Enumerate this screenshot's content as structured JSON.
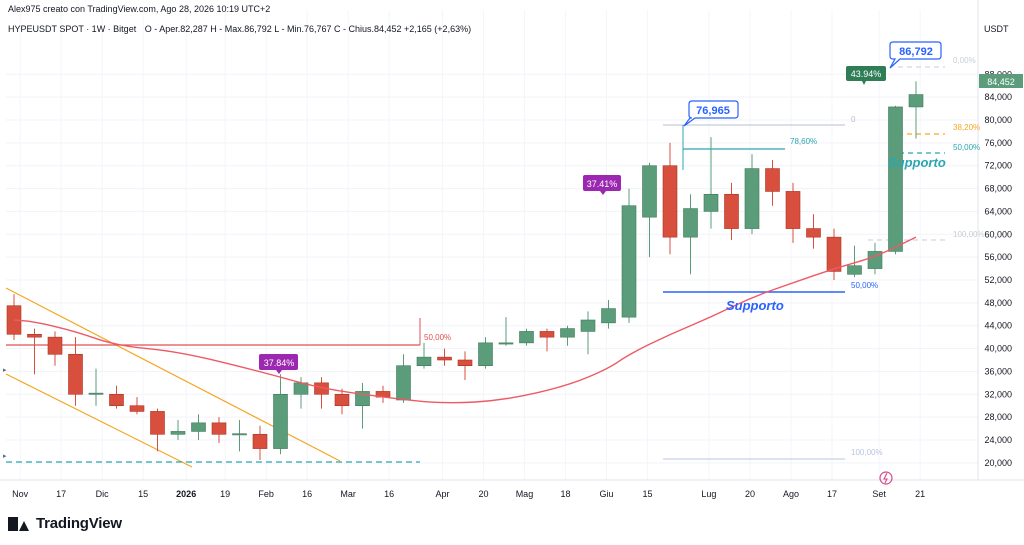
{
  "header": {
    "author_line": "Alex975 creato con TradingView.com, Ago 28, 2026 10:19 UTC+2",
    "symbol_line": "HYPEUSDT SPOT · 1W · Bitget",
    "ohlc_line": "O - Aper.82,287  H - Max.86,792  L - Min.76,767  C - Chius.84,452  +2,165 (+2,63%)",
    "currency": "USDT"
  },
  "footer": {
    "brand": "TradingView"
  },
  "colors": {
    "up": "#5b9d7a",
    "down": "#d94f3d",
    "ma": "#ee5a63",
    "support": "#2962ff",
    "channel": "#f5a623",
    "teal_dash": "#2aa7b0",
    "purple": "#9c27b0",
    "dark_green": "#2e7d57"
  },
  "chart_data": {
    "type": "candlestick",
    "ylim": [
      17000,
      94000
    ],
    "y_ticks": [
      "88,000",
      "84,000",
      "80,000",
      "76,000",
      "72,000",
      "68,000",
      "64,000",
      "60,000",
      "56,000",
      "52,000",
      "48,000",
      "44,000",
      "40,000",
      "36,000",
      "32,000",
      "28,000",
      "24,000",
      "20,000"
    ],
    "x_ticks": [
      {
        "label": "Nov",
        "w": 0.3
      },
      {
        "label": "17",
        "w": 2.3
      },
      {
        "label": "Dic",
        "w": 4.3
      },
      {
        "label": "15",
        "w": 6.3
      },
      {
        "label": "2026",
        "w": 8.4,
        "bold": true
      },
      {
        "label": "19",
        "w": 10.3
      },
      {
        "label": "Feb",
        "w": 12.3
      },
      {
        "label": "16",
        "w": 14.3
      },
      {
        "label": "Mar",
        "w": 16.3
      },
      {
        "label": "16",
        "w": 18.3
      },
      {
        "label": "Apr",
        "w": 20.9
      },
      {
        "label": "20",
        "w": 22.9
      },
      {
        "label": "Mag",
        "w": 24.9
      },
      {
        "label": "18",
        "w": 26.9
      },
      {
        "label": "Giu",
        "w": 28.9
      },
      {
        "label": "15",
        "w": 30.9
      },
      {
        "label": "Lug",
        "w": 33.9
      },
      {
        "label": "20",
        "w": 35.9
      },
      {
        "label": "Ago",
        "w": 37.9
      },
      {
        "label": "17",
        "w": 39.9
      },
      {
        "label": "Set",
        "w": 42.2
      },
      {
        "label": "21",
        "w": 44.2
      }
    ],
    "candles": [
      {
        "o": 47500,
        "h": 49500,
        "l": 41500,
        "c": 42500
      },
      {
        "o": 42500,
        "h": 43500,
        "l": 35500,
        "c": 42000
      },
      {
        "o": 42000,
        "h": 43000,
        "l": 37000,
        "c": 39000
      },
      {
        "o": 39000,
        "h": 42000,
        "l": 30000,
        "c": 32000
      },
      {
        "o": 32000,
        "h": 36500,
        "l": 30000,
        "c": 32200
      },
      {
        "o": 32000,
        "h": 33500,
        "l": 29500,
        "c": 30000
      },
      {
        "o": 30000,
        "h": 31500,
        "l": 28500,
        "c": 29000
      },
      {
        "o": 29000,
        "h": 29500,
        "l": 22000,
        "c": 25000
      },
      {
        "o": 25000,
        "h": 27500,
        "l": 24000,
        "c": 25500
      },
      {
        "o": 25500,
        "h": 28500,
        "l": 24000,
        "c": 27000
      },
      {
        "o": 27000,
        "h": 28000,
        "l": 23500,
        "c": 25000
      },
      {
        "o": 25000,
        "h": 27500,
        "l": 22000,
        "c": 25100
      },
      {
        "o": 25000,
        "h": 26500,
        "l": 20500,
        "c": 22500
      },
      {
        "o": 22500,
        "h": 35500,
        "l": 21500,
        "c": 32000
      },
      {
        "o": 32000,
        "h": 35000,
        "l": 29500,
        "c": 34000
      },
      {
        "o": 34000,
        "h": 35000,
        "l": 29500,
        "c": 32000
      },
      {
        "o": 32000,
        "h": 33000,
        "l": 28500,
        "c": 30000
      },
      {
        "o": 30000,
        "h": 34000,
        "l": 26000,
        "c": 32500
      },
      {
        "o": 32500,
        "h": 33500,
        "l": 30500,
        "c": 31500
      },
      {
        "o": 31000,
        "h": 39000,
        "l": 30500,
        "c": 37000
      },
      {
        "o": 37000,
        "h": 41000,
        "l": 36500,
        "c": 38500
      },
      {
        "o": 38500,
        "h": 40000,
        "l": 37000,
        "c": 38000
      },
      {
        "o": 38000,
        "h": 39500,
        "l": 34500,
        "c": 37000
      },
      {
        "o": 37000,
        "h": 42000,
        "l": 36500,
        "c": 41000
      },
      {
        "o": 41000,
        "h": 45500,
        "l": 40500,
        "c": 41000
      },
      {
        "o": 41000,
        "h": 43500,
        "l": 40500,
        "c": 43000
      },
      {
        "o": 43000,
        "h": 43500,
        "l": 39500,
        "c": 42000
      },
      {
        "o": 42000,
        "h": 44000,
        "l": 40500,
        "c": 43500
      },
      {
        "o": 43000,
        "h": 46500,
        "l": 39000,
        "c": 45000
      },
      {
        "o": 44500,
        "h": 48500,
        "l": 43500,
        "c": 47000
      },
      {
        "o": 45500,
        "h": 68000,
        "l": 44500,
        "c": 65000
      },
      {
        "o": 63000,
        "h": 72500,
        "l": 56000,
        "c": 72000
      },
      {
        "o": 72000,
        "h": 76000,
        "l": 56500,
        "c": 59500
      },
      {
        "o": 59500,
        "h": 67000,
        "l": 53000,
        "c": 64500
      },
      {
        "o": 64000,
        "h": 77000,
        "l": 61000,
        "c": 67000
      },
      {
        "o": 67000,
        "h": 69000,
        "l": 59000,
        "c": 61000
      },
      {
        "o": 61000,
        "h": 74000,
        "l": 60000,
        "c": 71500
      },
      {
        "o": 71500,
        "h": 73000,
        "l": 65000,
        "c": 67500
      },
      {
        "o": 67500,
        "h": 69000,
        "l": 58500,
        "c": 61000
      },
      {
        "o": 61000,
        "h": 63500,
        "l": 57500,
        "c": 59500
      },
      {
        "o": 59500,
        "h": 61000,
        "l": 52000,
        "c": 53500
      },
      {
        "o": 53000,
        "h": 58000,
        "l": 52500,
        "c": 54500
      },
      {
        "o": 54000,
        "h": 58500,
        "l": 53000,
        "c": 57000
      },
      {
        "o": 57000,
        "h": 82500,
        "l": 56500,
        "c": 82287
      },
      {
        "o": 82287,
        "h": 86792,
        "l": 76767,
        "c": 84452
      }
    ],
    "ma_series": [
      {
        "w": 0,
        "v": 45000
      },
      {
        "w": 1,
        "v": 44700
      },
      {
        "w": 3,
        "v": 43000
      },
      {
        "w": 5,
        "v": 40500
      },
      {
        "w": 8,
        "v": 39500
      },
      {
        "w": 12,
        "v": 36000
      },
      {
        "w": 15,
        "v": 33000
      },
      {
        "w": 18,
        "v": 31500
      },
      {
        "w": 21,
        "v": 30300
      },
      {
        "w": 24,
        "v": 31000
      },
      {
        "w": 27,
        "v": 33500
      },
      {
        "w": 29,
        "v": 36500
      },
      {
        "w": 30,
        "v": 39000
      },
      {
        "w": 32,
        "v": 42500
      },
      {
        "w": 34,
        "v": 45500
      },
      {
        "w": 36,
        "v": 49000
      },
      {
        "w": 38,
        "v": 51500
      },
      {
        "w": 40,
        "v": 54000
      },
      {
        "w": 42,
        "v": 56000
      },
      {
        "w": 44,
        "v": 59500
      }
    ],
    "annotations": {
      "peak_label": "86,792",
      "mid_peak_label": "76,965",
      "pct_43": "43.94%",
      "pct_37_41": "37.41%",
      "pct_37_84": "37.84%",
      "fib_0": "0",
      "fib_0_pct": "0,00%",
      "fib_38": "38,20%",
      "fib_50_top": "50,00%",
      "fib_100_top": "100,00%",
      "fib_78": "78,60%",
      "fib_50_mid": "50,00%",
      "fib_100_bottom": "100,00%",
      "fib_50_left": "50,00%",
      "supporto_top": "Supporto",
      "supporto_mid": "Supporto"
    },
    "last_price": "84,452"
  }
}
